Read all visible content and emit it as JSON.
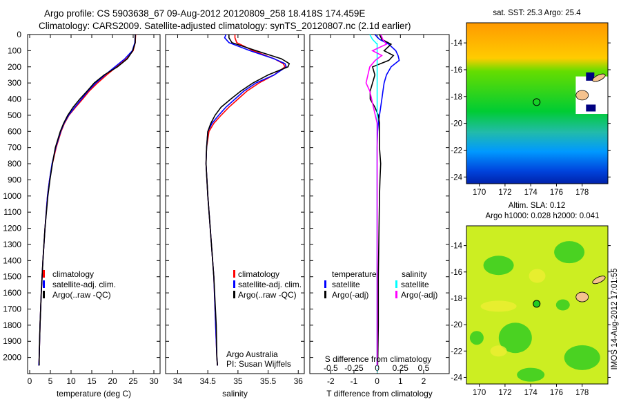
{
  "header": {
    "line1": "Argo profile: CS 5903638_67 09-Aug-2012 20120809_258 18.418S 174.459E",
    "line2": "Climatology: CARS2009. Satellite-adjusted climatology: synTS_20120807.nc (2.1d earlier)"
  },
  "watermark": "IMOS 14-Aug-2012 17:01:55",
  "colors": {
    "climatology": "#ff0000",
    "satellite": "#0000ff",
    "argo": "#000000",
    "sal_satellite": "#00ffff",
    "sal_argo": "#ff00ff"
  },
  "chart_data": [
    {
      "type": "line",
      "name": "temperature-profile",
      "xlabel": "temperature (deg C)",
      "ylabel": "",
      "xlim": [
        -0.5,
        31.5
      ],
      "ylim": [
        2100,
        0
      ],
      "xticks": [
        "0",
        "5",
        "10",
        "15",
        "20",
        "25",
        "30"
      ],
      "yticks": [
        "0",
        "100",
        "200",
        "300",
        "400",
        "500",
        "600",
        "700",
        "800",
        "900",
        "1000",
        "1100",
        "1200",
        "1300",
        "1400",
        "1500",
        "1600",
        "1700",
        "1800",
        "1900",
        "2000"
      ],
      "legend": [
        "climatology",
        "satellite-adj. clim.",
        "Argo(..raw -QC)"
      ],
      "depth": [
        0,
        50,
        100,
        150,
        200,
        250,
        300,
        350,
        400,
        450,
        500,
        550,
        600,
        700,
        800,
        900,
        1000,
        1200,
        1400,
        1600,
        1800,
        2000,
        2050
      ],
      "series": [
        {
          "name": "climatology",
          "values": [
            25.6,
            25.5,
            25.0,
            23.4,
            21.0,
            18.6,
            16.4,
            14.4,
            12.8,
            11.1,
            9.5,
            8.4,
            7.6,
            6.4,
            5.5,
            4.8,
            4.3,
            3.7,
            3.2,
            2.8,
            2.5,
            2.3,
            2.2
          ]
        },
        {
          "name": "satellite-adj. clim.",
          "values": [
            25.5,
            25.4,
            24.8,
            23.0,
            20.6,
            18.2,
            16.0,
            14.1,
            12.5,
            10.9,
            9.4,
            8.3,
            7.5,
            6.3,
            5.4,
            4.8,
            4.3,
            3.7,
            3.2,
            2.8,
            2.5,
            2.3,
            2.2
          ]
        },
        {
          "name": "Argo(..raw -QC)",
          "values": [
            25.5,
            25.5,
            24.9,
            23.6,
            21.2,
            18.0,
            15.6,
            13.9,
            12.1,
            10.5,
            9.2,
            8.2,
            7.4,
            6.2,
            5.5,
            4.9,
            4.4,
            3.7,
            3.2,
            2.8,
            2.5,
            2.3,
            2.3
          ]
        }
      ]
    },
    {
      "type": "line",
      "name": "salinity-profile",
      "xlabel": "salinity",
      "xlim": [
        33.8,
        36.1
      ],
      "ylim": [
        2100,
        0
      ],
      "xticks": [
        "34",
        "34.5",
        "35",
        "35.5",
        "36"
      ],
      "legend": [
        "climatology",
        "satellite-adj. clim.",
        "Argo(..raw -QC)"
      ],
      "annotation": [
        "Argo Australia",
        "PI: Susan Wijffels"
      ],
      "depth": [
        0,
        20,
        50,
        100,
        150,
        180,
        200,
        250,
        300,
        350,
        400,
        450,
        500,
        550,
        600,
        700,
        800,
        1000,
        1200,
        1500,
        1800,
        2000,
        2050
      ],
      "series": [
        {
          "name": "climatology",
          "values": [
            34.95,
            34.95,
            34.98,
            35.25,
            35.6,
            35.75,
            35.78,
            35.6,
            35.35,
            35.15,
            35.0,
            34.85,
            34.72,
            34.6,
            34.52,
            34.48,
            34.47,
            34.5,
            34.54,
            34.6,
            34.63,
            34.65,
            34.66
          ]
        },
        {
          "name": "satellite-adj. clim.",
          "values": [
            34.8,
            34.78,
            34.85,
            35.2,
            35.6,
            35.78,
            35.8,
            35.6,
            35.3,
            35.1,
            34.95,
            34.8,
            34.68,
            34.57,
            34.5,
            34.48,
            34.47,
            34.5,
            34.54,
            34.6,
            34.63,
            34.65,
            34.66
          ]
        },
        {
          "name": "Argo(..raw -QC)",
          "values": [
            34.85,
            34.85,
            34.9,
            35.3,
            35.72,
            35.85,
            35.83,
            35.5,
            35.25,
            35.05,
            34.88,
            34.72,
            34.62,
            34.55,
            34.5,
            34.48,
            34.47,
            34.5,
            34.54,
            34.6,
            34.64,
            34.65,
            34.66
          ]
        }
      ]
    },
    {
      "type": "line",
      "name": "difference-profile",
      "xlabel": "T difference from climatology",
      "xlabel2": "S difference from climatology",
      "xlim": [
        -2.9,
        3.1
      ],
      "ylim": [
        2100,
        0
      ],
      "xticks": [
        "-2",
        "-1",
        "0",
        "1",
        "2"
      ],
      "xticks2": [
        "-0.5",
        "-0.25",
        "0",
        "0.25",
        "0.5"
      ],
      "legend": {
        "temperature_header": "temperature",
        "salinity_header": "salinity",
        "t_sat": "satellite",
        "t_argo": "Argo(-adj)",
        "s_sat": "satellite",
        "s_argo": "Argo(-adj)"
      },
      "depth": [
        0,
        30,
        60,
        100,
        130,
        160,
        200,
        250,
        300,
        350,
        400,
        450,
        500,
        550,
        600,
        700,
        800,
        900,
        1000,
        1200,
        1500,
        1800,
        2000,
        2050
      ],
      "series": [
        {
          "name": "temperature satellite",
          "unit": "degC",
          "values": [
            -0.1,
            0.1,
            0.5,
            0.8,
            0.9,
            0.95,
            0.6,
            0.4,
            0.3,
            0.25,
            0.2,
            0.15,
            0.1,
            0.05,
            0.02,
            0,
            0,
            0,
            0,
            0,
            0,
            0,
            0,
            0
          ]
        },
        {
          "name": "temperature Argo(-adj)",
          "unit": "degC",
          "values": [
            0.1,
            0.2,
            0.6,
            0.3,
            0.7,
            0.5,
            -0.2,
            -0.1,
            -0.2,
            -0.3,
            -0.3,
            -0.1,
            0.05,
            0.1,
            0.1,
            0.1,
            0.15,
            0.12,
            0.1,
            0.08,
            0.05,
            0.05,
            0.03,
            0.02
          ]
        },
        {
          "name": "salinity satellite",
          "unit": "psu",
          "values": [
            -0.08,
            -0.05,
            0.0,
            0.0,
            0.0,
            0.0,
            0.0,
            0.0,
            0.0,
            0.0,
            0.0,
            0.0,
            0.0,
            0.0,
            0.0,
            0.0,
            0.0,
            0.0,
            0.0,
            0.0,
            0.0,
            0.0,
            0.0,
            0.0
          ]
        },
        {
          "name": "salinity Argo(-adj)",
          "unit": "psu",
          "values": [
            0.04,
            0.06,
            0.1,
            -0.05,
            0.05,
            -0.02,
            -0.08,
            -0.1,
            -0.12,
            -0.08,
            -0.06,
            -0.04,
            -0.02,
            0,
            0,
            0,
            0,
            0,
            0,
            0,
            0,
            0,
            0,
            0
          ]
        }
      ]
    },
    {
      "type": "heatmap",
      "name": "sst-map",
      "title": "sat. SST: 25.3 Argo: 25.4",
      "xlim": [
        169,
        180
      ],
      "ylim": [
        -24.5,
        -12.5
      ],
      "xticks": [
        "170",
        "172",
        "174",
        "176",
        "178"
      ],
      "yticks": [
        "-14",
        "-16",
        "-18",
        "-20",
        "-22",
        "-24"
      ],
      "argo_position": {
        "lon": 174.459,
        "lat": -18.418
      }
    },
    {
      "type": "heatmap",
      "name": "sla-map",
      "title": "Altim. SLA: 0.12",
      "subtitle": "Argo h1000: 0.028 h2000: 0.041",
      "xlim": [
        169,
        180
      ],
      "ylim": [
        -24.5,
        -12.5
      ],
      "xticks": [
        "170",
        "172",
        "174",
        "176",
        "178"
      ],
      "yticks": [
        "-14",
        "-16",
        "-18",
        "-20",
        "-22",
        "-24"
      ],
      "argo_position": {
        "lon": 174.459,
        "lat": -18.418
      }
    }
  ]
}
